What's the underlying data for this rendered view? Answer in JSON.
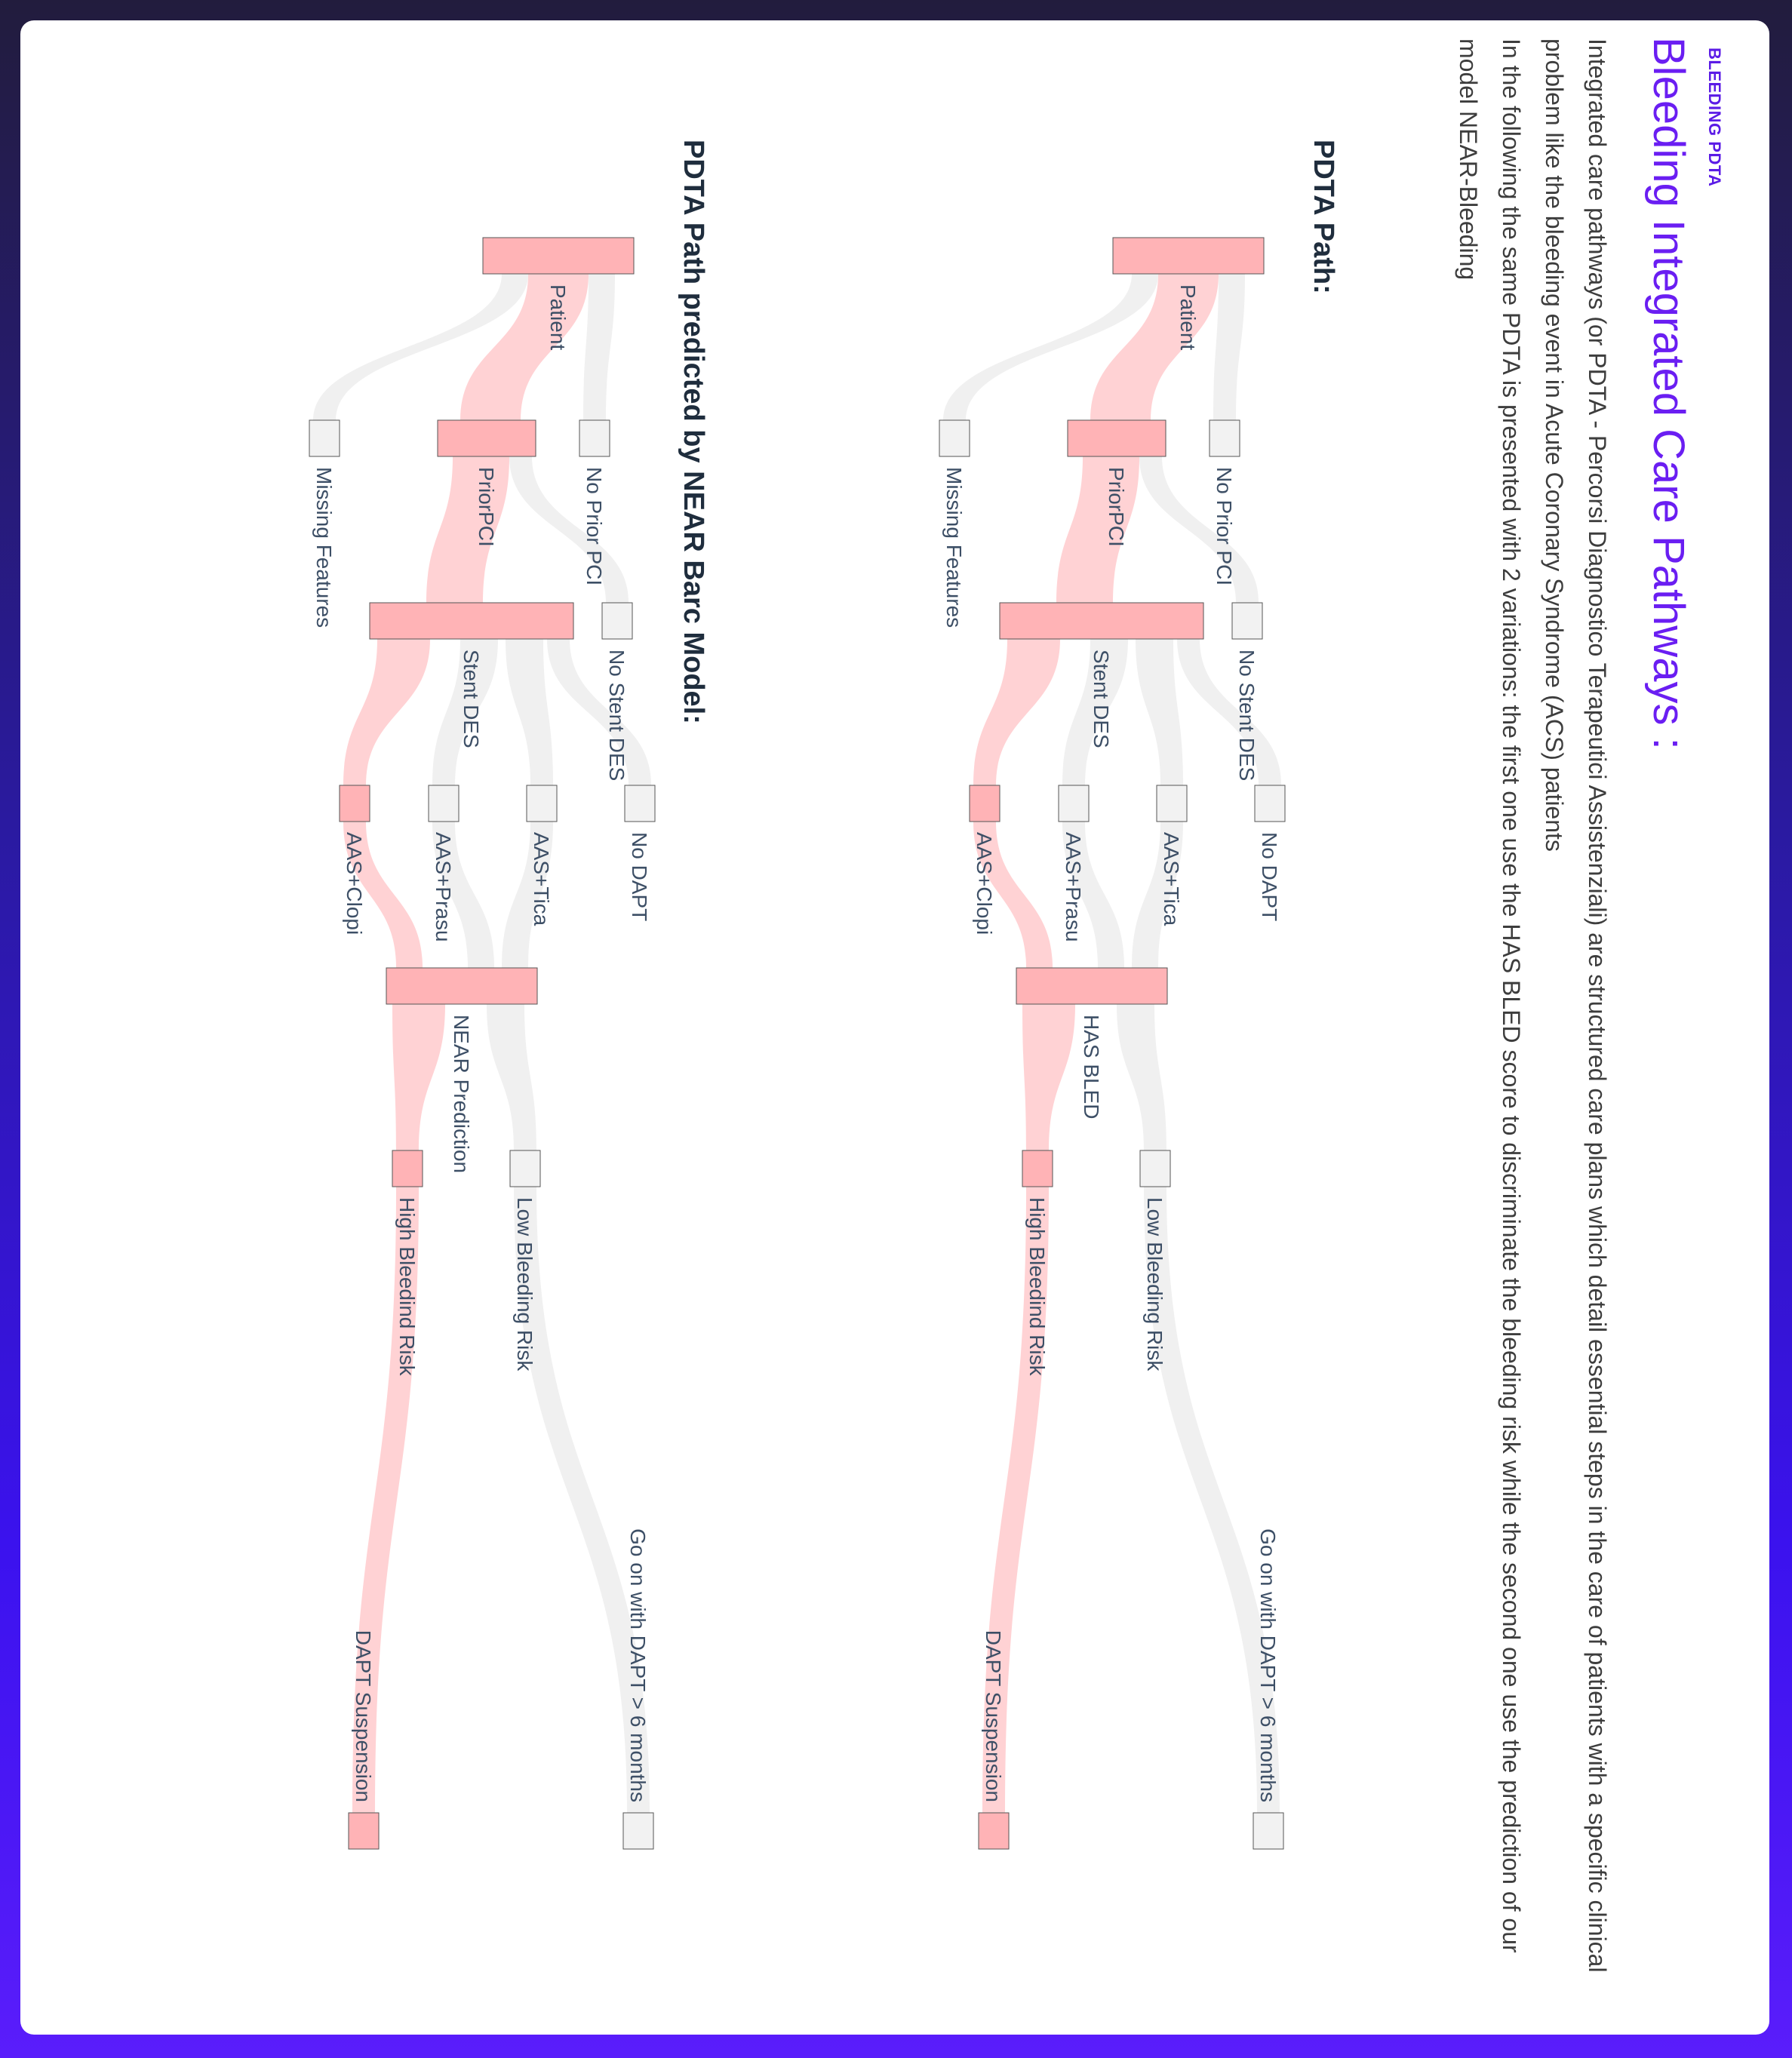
{
  "header": {
    "badge": "BLEEDING PDTA",
    "title": "Bleeding Integrated Care Pathways :"
  },
  "intro": {
    "paragraph": "Integrated care pathways (or PDTA - Percorsi Diagnostico Terapeutici Assistenziali) are structured care plans which detail essential steps in the care of patients with a specific clinical problem like the bleeding event in Acute Coronary Syndrome (ACS) patients",
    "paragraph2": "In the following the same PDTA is presented with 2 variations: the first one use the HAS BLED score to discriminate the bleeding risk while the second one use the prediction of our model NEAR-Bleeding"
  },
  "colors": {
    "highlight_node": "#ffb3b6",
    "highlight_link": "#ffd2d4",
    "neutral_node": "#f2f2f2",
    "neutral_link": "#f0f0f0",
    "accent": "#6a1ef2"
  },
  "diagrams": [
    {
      "section_title": "PDTA Path:",
      "nodes": {
        "patient": "Patient",
        "missing": "Missing Features",
        "no_prior_pci": "No Prior PCI",
        "prior_pci": "PriorPCI",
        "no_stent": "No Stent DES",
        "stent": "Stent DES",
        "no_dapt": "No DAPT",
        "clopi": "AAS+Clopi",
        "prasu": "AAS+Prasu",
        "tica": "AAS+Tica",
        "risk": "HAS BLED",
        "high": "High Bleedind Risk",
        "low": "Low Bleeding Risk",
        "suspension": "DAPT Suspension",
        "go_on": "Go on with DAPT > 6 months"
      }
    },
    {
      "section_title": "PDTA Path predicted by NEAR Barc Model:",
      "nodes": {
        "patient": "Patient",
        "missing": "Missing Features",
        "no_prior_pci": "No Prior PCI",
        "prior_pci": "PriorPCI",
        "no_stent": "No Stent DES",
        "stent": "Stent DES",
        "no_dapt": "No DAPT",
        "clopi": "AAS+Clopi",
        "prasu": "AAS+Prasu",
        "tica": "AAS+Tica",
        "risk": "NEAR Prediction",
        "high": "High Bleedind Risk",
        "low": "Low Bleeding Risk",
        "suspension": "DAPT Suspension",
        "go_on": "Go on with DAPT > 6 months"
      }
    }
  ]
}
